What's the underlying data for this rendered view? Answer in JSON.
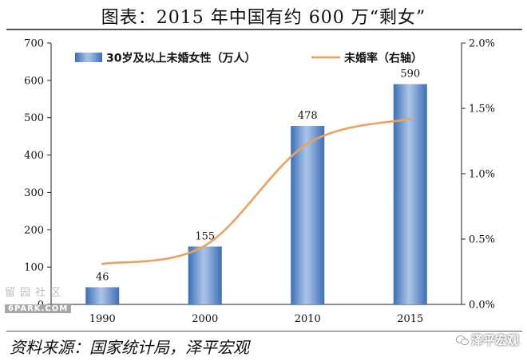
{
  "title": "图表：2015 年中国有约 600 万“剩女”",
  "source": "资料来源：国家统计局，泽平宏观",
  "watermarks": {
    "left_top": "留园社区",
    "left_bottom": "6PARK.COM",
    "right": "泽平宏观"
  },
  "chart_data": {
    "type": "bar+line",
    "categories": [
      "1990",
      "2000",
      "2010",
      "2015"
    ],
    "series": [
      {
        "name": "30岁及以上未婚女性（万人）",
        "type": "bar",
        "axis": "left",
        "values": [
          46,
          155,
          478,
          590
        ],
        "data_labels": [
          "46",
          "155",
          "478",
          "590"
        ],
        "color": "#4a7fc1"
      },
      {
        "name": "未婚率（右轴）",
        "type": "line",
        "axis": "right",
        "values": [
          0.0031,
          0.0045,
          0.0123,
          0.0142
        ],
        "color": "#f0a05a"
      }
    ],
    "y_left": {
      "ylim": [
        0,
        700
      ],
      "ticks": [
        0,
        100,
        200,
        300,
        400,
        500,
        600,
        700
      ]
    },
    "y_right": {
      "ylim": [
        0,
        0.02
      ],
      "ticks": [
        "0.0%",
        "0.5%",
        "1.0%",
        "1.5%",
        "2.0%"
      ]
    },
    "legend": "top-inside",
    "grid": false
  }
}
